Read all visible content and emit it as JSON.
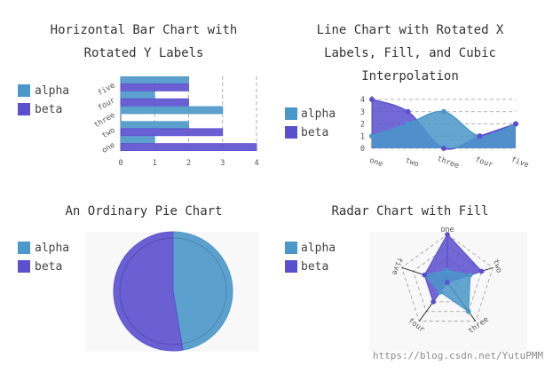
{
  "colors": {
    "alpha": "#4a97c9",
    "beta": "#5a4fcf",
    "grid": "#999999",
    "axis": "#555555"
  },
  "watermark": "https://blog.csdn.net/YutuPMM",
  "chart_data": [
    {
      "type": "bar",
      "orientation": "horizontal",
      "title_lines": [
        "Horizontal Bar Chart with",
        "Rotated Y Labels"
      ],
      "categories": [
        "one",
        "two",
        "three",
        "four",
        "five"
      ],
      "series": [
        {
          "name": "alpha",
          "values": [
            1,
            2,
            3,
            1,
            2
          ]
        },
        {
          "name": "beta",
          "values": [
            4,
            3,
            0,
            2,
            2
          ]
        }
      ],
      "xlim": [
        0,
        4
      ],
      "xticks": [
        "0",
        "1",
        "2",
        "3",
        "4"
      ],
      "grid": "vertical-dashed",
      "legend_position": "left"
    },
    {
      "type": "area",
      "interpolation": "cubic",
      "title_lines": [
        "Line Chart with Rotated X",
        "Labels, Fill, and Cubic",
        "Interpolation"
      ],
      "categories": [
        "one",
        "two",
        "three",
        "four",
        "five"
      ],
      "series": [
        {
          "name": "alpha",
          "values": [
            1,
            2,
            3,
            1,
            2
          ]
        },
        {
          "name": "beta",
          "values": [
            4,
            3,
            0,
            1,
            2
          ]
        }
      ],
      "ylim": [
        0,
        4
      ],
      "yticks": [
        "0",
        "1",
        "2",
        "3",
        "4"
      ],
      "grid": "horizontal-dashed",
      "legend_position": "left"
    },
    {
      "type": "pie",
      "title_lines": [
        "An Ordinary Pie Chart"
      ],
      "series": [
        {
          "name": "alpha",
          "values": [
            9
          ]
        },
        {
          "name": "beta",
          "values": [
            10
          ]
        }
      ],
      "legend_position": "left"
    },
    {
      "type": "radar",
      "title_lines": [
        "Radar Chart with Fill"
      ],
      "axes": [
        "one",
        "two",
        "three",
        "four",
        "five"
      ],
      "series": [
        {
          "name": "alpha",
          "values": [
            1,
            2,
            3,
            1,
            2
          ]
        },
        {
          "name": "beta",
          "values": [
            4,
            3,
            0,
            2,
            2
          ]
        }
      ],
      "rlim": [
        0,
        4
      ],
      "legend_position": "left"
    }
  ]
}
